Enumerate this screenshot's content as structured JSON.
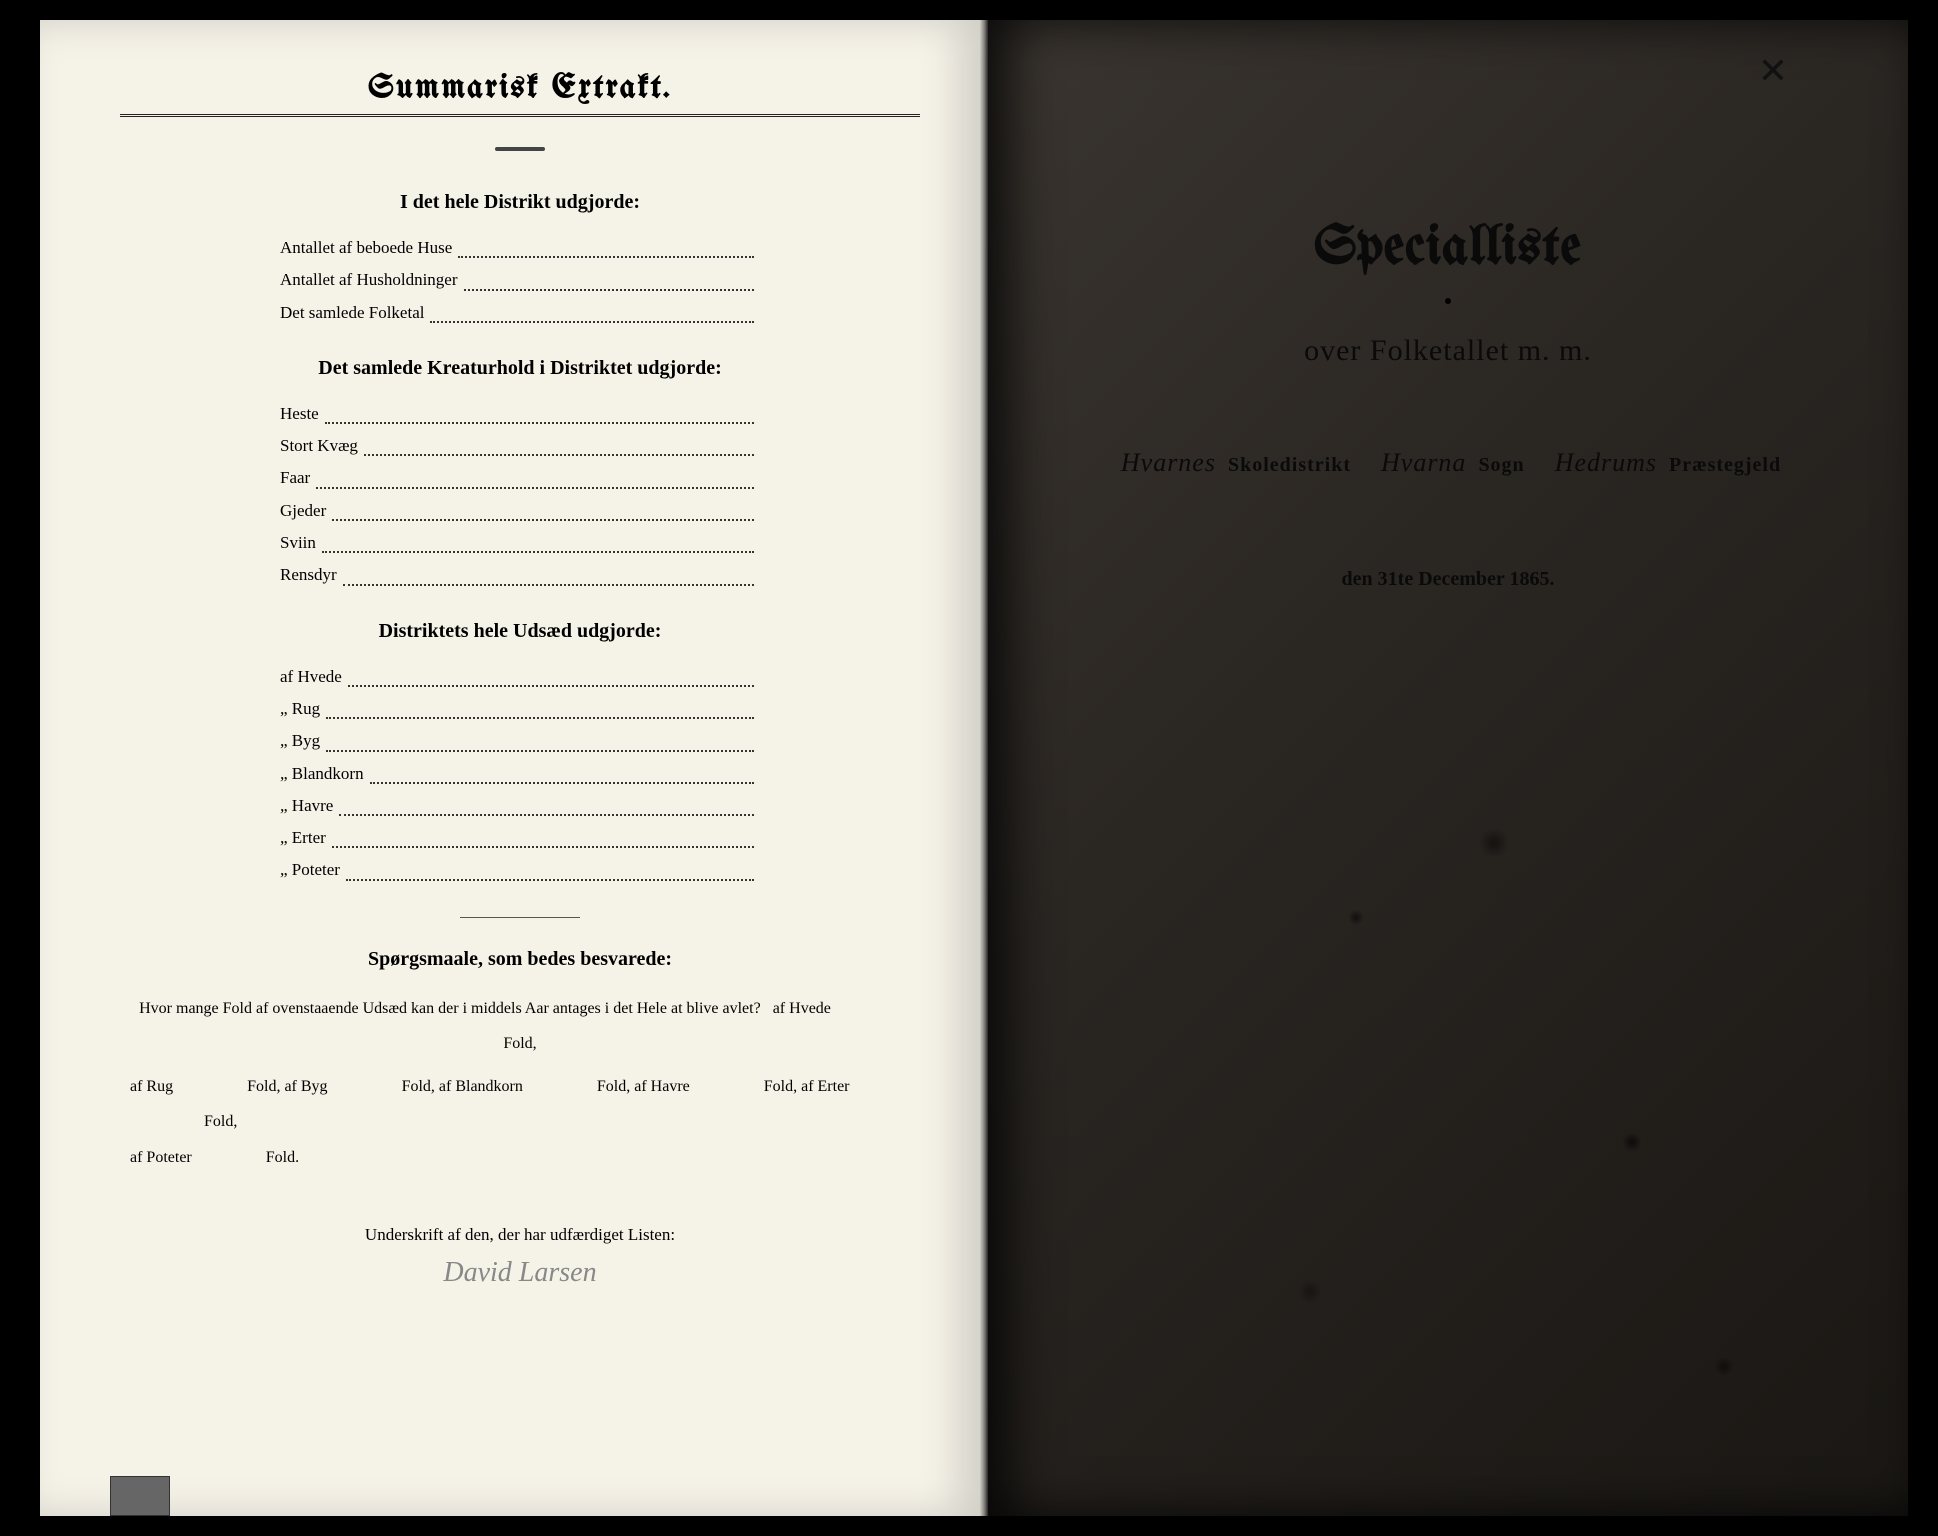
{
  "left": {
    "header": "Summarisk Extrakt.",
    "section1": {
      "title": "I det hele Distrikt udgjorde:",
      "items": [
        "Antallet af beboede Huse",
        "Antallet af Husholdninger",
        "Det samlede Folketal"
      ]
    },
    "section2": {
      "title": "Det samlede Kreaturhold i Distriktet udgjorde:",
      "items": [
        "Heste",
        "Stort Kvæg",
        "Faar",
        "Gjeder",
        "Sviin",
        "Rensdyr"
      ]
    },
    "section3": {
      "title": "Distriktets hele Udsæd udgjorde:",
      "items": [
        "af Hvede",
        "„ Rug",
        "„ Byg",
        "„ Blandkorn",
        "„ Havre",
        "„ Erter",
        "„ Poteter"
      ]
    },
    "questions": {
      "title": "Spørgsmaale, som bedes besvarede:",
      "intro": "Hvor mange Fold af ovenstaaende Udsæd kan der i middels Aar antages i det Hele at blive avlet?",
      "parts": [
        "af Hvede",
        "Fold,",
        "af Rug",
        "Fold,",
        "af Byg",
        "Fold,",
        "af Blandkorn",
        "Fold,",
        "af Havre",
        "Fold,",
        "af Erter",
        "Fold,",
        "af Poteter",
        "Fold."
      ]
    },
    "signature": {
      "label": "Underskrift af den, der har udfærdiget Listen:",
      "name": "David Larsen"
    }
  },
  "right": {
    "topHandwriting": "",
    "xMark": "✕",
    "title": "Specialliste",
    "titleSuffix": "m. m.",
    "subtitle": "over Folketallet m. m.",
    "line": {
      "district": "Hvarnes",
      "districtLabel": "Skoledistrikt",
      "parish": "Hvarna",
      "parishLabel": "Sogn",
      "deanery": "Hedrums",
      "deaneryLabel": "Præstegjeld"
    },
    "date": "den 31te December 1865."
  },
  "colors": {
    "leftBg": "#f5f2e8",
    "rightBg": "#2a2622",
    "ink": "#111111",
    "faded": "#888888"
  }
}
